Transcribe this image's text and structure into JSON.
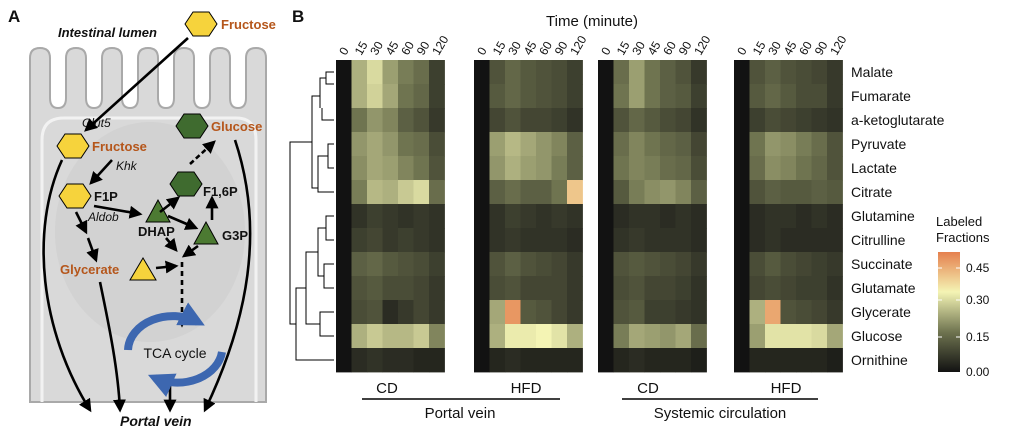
{
  "panel_a": {
    "label": "A",
    "lumen": "Intestinal lumen",
    "fructose_top": "Fructose",
    "glut5": "Glut5",
    "fructose": "Fructose",
    "khk": "Khk",
    "f1p": "F1P",
    "aldob": "Aldob",
    "dhap": "DHAP",
    "g3p": "G3P",
    "f16p": "F1,6P",
    "glucose": "Glucose",
    "glycerate": "Glycerate",
    "tca": "TCA cycle",
    "portal": "Portal vein",
    "colors": {
      "hexagon_yellow": "#f6d33c",
      "hexagon_green": "#3f6b2f",
      "triangle_green": "#4c7a32",
      "triangle_yellow": "#f6d33c",
      "tca_arrow": "#3d67b0",
      "cell": "#d9d9d9",
      "label_orange": "#b5561b"
    }
  },
  "panel_b": {
    "label": "B",
    "time_title": "Time (minute)",
    "time_ticks": [
      "0",
      "15",
      "30",
      "45",
      "60",
      "90",
      "120"
    ],
    "group_labels": [
      "CD",
      "HFD",
      "CD",
      "HFD"
    ],
    "site_labels": [
      "Portal vein",
      "Systemic circulation"
    ],
    "metabolites": [
      "Malate",
      "Fumarate",
      "a-ketoglutarate",
      "Pyruvate",
      "Lactate",
      "Citrate",
      "Glutamine",
      "Citrulline",
      "Succinate",
      "Glutamate",
      "Glycerate",
      "Glucose",
      "Ornithine"
    ],
    "legend": {
      "title_line1": "Labeled",
      "title_line2": "Fractions",
      "ticks": [
        "0.45",
        "0.30",
        "0.15",
        "0.00"
      ]
    },
    "colormap": [
      [
        0.0,
        "#121212"
      ],
      [
        0.15,
        "#6f7450"
      ],
      [
        0.3,
        "#f4f4b4"
      ],
      [
        0.45,
        "#e5804e"
      ]
    ],
    "heatmaps": [
      {
        "name": "portal-cd",
        "values": [
          [
            0.0,
            0.22,
            0.27,
            0.2,
            0.16,
            0.14,
            0.07
          ],
          [
            0.0,
            0.22,
            0.26,
            0.21,
            0.15,
            0.13,
            0.07
          ],
          [
            0.0,
            0.15,
            0.19,
            0.17,
            0.12,
            0.1,
            0.06
          ],
          [
            0.0,
            0.19,
            0.21,
            0.19,
            0.15,
            0.14,
            0.09
          ],
          [
            0.0,
            0.18,
            0.21,
            0.2,
            0.17,
            0.15,
            0.1
          ],
          [
            0.0,
            0.16,
            0.23,
            0.22,
            0.25,
            0.27,
            0.14
          ],
          [
            0.0,
            0.05,
            0.07,
            0.06,
            0.05,
            0.06,
            0.05
          ],
          [
            0.0,
            0.07,
            0.08,
            0.06,
            0.07,
            0.06,
            0.05
          ],
          [
            0.0,
            0.12,
            0.13,
            0.11,
            0.1,
            0.09,
            0.07
          ],
          [
            0.0,
            0.1,
            0.11,
            0.09,
            0.09,
            0.08,
            0.06
          ],
          [
            0.0,
            0.09,
            0.1,
            0.04,
            0.06,
            0.08,
            0.06
          ],
          [
            0.0,
            0.22,
            0.25,
            0.23,
            0.23,
            0.25,
            0.17
          ],
          [
            0.0,
            0.04,
            0.05,
            0.04,
            0.04,
            0.03,
            0.03
          ]
        ]
      },
      {
        "name": "portal-hfd",
        "values": [
          [
            0.0,
            0.1,
            0.13,
            0.11,
            0.1,
            0.09,
            0.07
          ],
          [
            0.0,
            0.11,
            0.13,
            0.11,
            0.1,
            0.09,
            0.07
          ],
          [
            0.0,
            0.08,
            0.1,
            0.08,
            0.08,
            0.07,
            0.05
          ],
          [
            0.0,
            0.2,
            0.23,
            0.21,
            0.19,
            0.17,
            0.12
          ],
          [
            0.0,
            0.19,
            0.22,
            0.2,
            0.19,
            0.16,
            0.12
          ],
          [
            0.0,
            0.12,
            0.14,
            0.12,
            0.12,
            0.15,
            0.36
          ],
          [
            0.0,
            0.05,
            0.07,
            0.06,
            0.05,
            0.06,
            0.05
          ],
          [
            0.0,
            0.05,
            0.06,
            0.05,
            0.05,
            0.05,
            0.04
          ],
          [
            0.0,
            0.1,
            0.12,
            0.1,
            0.09,
            0.08,
            0.06
          ],
          [
            0.0,
            0.09,
            0.1,
            0.08,
            0.08,
            0.08,
            0.06
          ],
          [
            0.0,
            0.21,
            0.42,
            0.11,
            0.1,
            0.08,
            0.06
          ],
          [
            0.0,
            0.22,
            0.29,
            0.29,
            0.3,
            0.28,
            0.22
          ],
          [
            0.0,
            0.03,
            0.04,
            0.03,
            0.03,
            0.03,
            0.03
          ]
        ]
      },
      {
        "name": "systemic-cd",
        "values": [
          [
            0.0,
            0.14,
            0.2,
            0.15,
            0.12,
            0.1,
            0.06
          ],
          [
            0.0,
            0.15,
            0.2,
            0.15,
            0.12,
            0.11,
            0.07
          ],
          [
            0.0,
            0.1,
            0.13,
            0.11,
            0.09,
            0.08,
            0.05
          ],
          [
            0.0,
            0.14,
            0.17,
            0.15,
            0.13,
            0.12,
            0.08
          ],
          [
            0.0,
            0.15,
            0.17,
            0.16,
            0.14,
            0.13,
            0.09
          ],
          [
            0.0,
            0.11,
            0.16,
            0.18,
            0.19,
            0.17,
            0.12
          ],
          [
            0.0,
            0.04,
            0.05,
            0.05,
            0.04,
            0.05,
            0.04
          ],
          [
            0.0,
            0.05,
            0.06,
            0.05,
            0.05,
            0.05,
            0.04
          ],
          [
            0.0,
            0.1,
            0.11,
            0.1,
            0.09,
            0.08,
            0.06
          ],
          [
            0.0,
            0.09,
            0.1,
            0.08,
            0.08,
            0.07,
            0.05
          ],
          [
            0.0,
            0.1,
            0.11,
            0.07,
            0.07,
            0.06,
            0.05
          ],
          [
            0.0,
            0.16,
            0.21,
            0.2,
            0.19,
            0.21,
            0.14
          ],
          [
            0.0,
            0.03,
            0.04,
            0.03,
            0.03,
            0.03,
            0.02
          ]
        ]
      },
      {
        "name": "systemic-hfd",
        "values": [
          [
            0.0,
            0.1,
            0.12,
            0.1,
            0.09,
            0.08,
            0.06
          ],
          [
            0.0,
            0.11,
            0.13,
            0.11,
            0.09,
            0.09,
            0.06
          ],
          [
            0.0,
            0.07,
            0.09,
            0.08,
            0.07,
            0.06,
            0.05
          ],
          [
            0.0,
            0.15,
            0.19,
            0.18,
            0.16,
            0.14,
            0.1
          ],
          [
            0.0,
            0.14,
            0.18,
            0.17,
            0.15,
            0.13,
            0.1
          ],
          [
            0.0,
            0.1,
            0.12,
            0.11,
            0.11,
            0.12,
            0.11
          ],
          [
            0.0,
            0.04,
            0.05,
            0.05,
            0.04,
            0.05,
            0.04
          ],
          [
            0.0,
            0.04,
            0.05,
            0.04,
            0.04,
            0.04,
            0.04
          ],
          [
            0.0,
            0.09,
            0.11,
            0.09,
            0.08,
            0.07,
            0.06
          ],
          [
            0.0,
            0.08,
            0.09,
            0.08,
            0.07,
            0.07,
            0.05
          ],
          [
            0.0,
            0.22,
            0.4,
            0.1,
            0.09,
            0.08,
            0.06
          ],
          [
            0.0,
            0.2,
            0.28,
            0.28,
            0.28,
            0.27,
            0.21
          ],
          [
            0.0,
            0.03,
            0.03,
            0.03,
            0.03,
            0.03,
            0.02
          ]
        ]
      }
    ]
  }
}
